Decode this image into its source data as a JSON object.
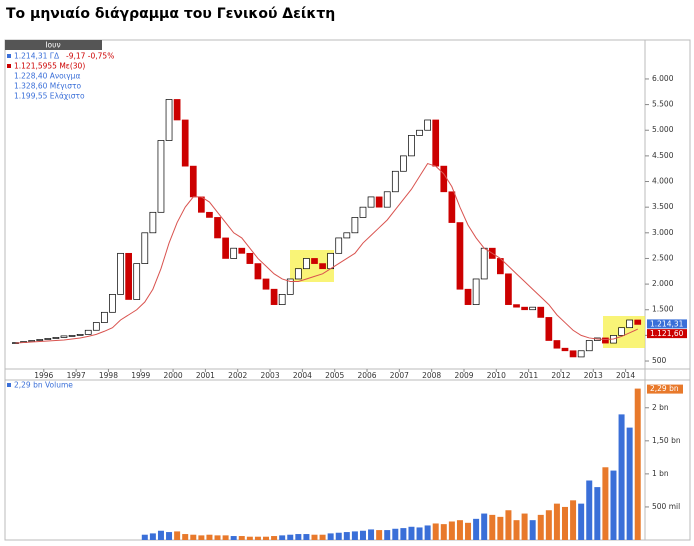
{
  "header": {
    "title": "Το μηνιαίο διάγραμμα του Γενικού Δείκτη"
  },
  "chart_data": [
    {
      "type": "candlestick",
      "legend_header": "Ιουν",
      "info_price": "1.214,31 ΓΔ",
      "info_change": "-9,17 -0,75%",
      "info_ma": "1.121,5955 Με(30)",
      "info_lines": [
        "1.228,40 Ανοιγμα",
        "1.328,60 Μέγιστο",
        "1.199,55 Ελάχιστο"
      ],
      "last_value_labels": [
        "1.214,31",
        "1.121,60"
      ],
      "xlim": [
        1994.8,
        2014.6
      ],
      "xticks": [
        1996,
        1997,
        1998,
        1999,
        2000,
        2001,
        2002,
        2003,
        2004,
        2005,
        2006,
        2007,
        2008,
        2009,
        2010,
        2011,
        2012,
        2013,
        2014
      ],
      "ylim": [
        364,
        6662
      ],
      "yticks": [
        {
          "value": 500,
          "label": "500"
        },
        {
          "value": 1000,
          "label": "1.000"
        },
        {
          "value": 1500,
          "label": "1.500"
        },
        {
          "value": 2000,
          "label": "2.000"
        },
        {
          "value": 2500,
          "label": "2.500"
        },
        {
          "value": 3000,
          "label": "3.000"
        },
        {
          "value": 3500,
          "label": "3.500"
        },
        {
          "value": 4000,
          "label": "4.000"
        },
        {
          "value": 4500,
          "label": "4.500"
        },
        {
          "value": 5000,
          "label": "5.000"
        },
        {
          "value": 5500,
          "label": "5.500"
        },
        {
          "value": 6000,
          "label": "6.000"
        }
      ],
      "x": [
        1995.125,
        1995.375,
        1995.625,
        1995.875,
        1996.125,
        1996.375,
        1996.625,
        1996.875,
        1997.125,
        1997.375,
        1997.625,
        1997.875,
        1998.125,
        1998.375,
        1998.625,
        1998.875,
        1999.125,
        1999.375,
        1999.625,
        1999.875,
        2000.125,
        2000.375,
        2000.625,
        2000.875,
        2001.125,
        2001.375,
        2001.625,
        2001.875,
        2002.125,
        2002.375,
        2002.625,
        2002.875,
        2003.125,
        2003.375,
        2003.625,
        2003.875,
        2004.125,
        2004.375,
        2004.625,
        2004.875,
        2005.125,
        2005.375,
        2005.625,
        2005.875,
        2006.125,
        2006.375,
        2006.625,
        2006.875,
        2007.125,
        2007.375,
        2007.625,
        2007.875,
        2008.125,
        2008.375,
        2008.625,
        2008.875,
        2009.125,
        2009.375,
        2009.625,
        2009.875,
        2010.125,
        2010.375,
        2010.625,
        2010.875,
        2011.125,
        2011.375,
        2011.625,
        2011.875,
        2012.125,
        2012.375,
        2012.625,
        2012.875,
        2013.125,
        2013.375,
        2013.625,
        2013.875,
        2014.125,
        2014.375
      ],
      "price": {
        "up_color": "#ffffff",
        "down_color": "#cc0000",
        "values": [
          860,
          880,
          900,
          920,
          940,
          960,
          990,
          1000,
          1020,
          1100,
          1250,
          1450,
          1800,
          2600,
          1700,
          2400,
          3000,
          3400,
          4800,
          5600,
          5200,
          4300,
          3700,
          3400,
          3300,
          2900,
          2500,
          2700,
          2600,
          2400,
          2100,
          1900,
          1600,
          1800,
          2100,
          2300,
          2500,
          2400,
          2300,
          2600,
          2900,
          3000,
          3300,
          3500,
          3700,
          3500,
          3800,
          4200,
          4500,
          4900,
          5000,
          5200,
          4300,
          3800,
          3200,
          1900,
          1600,
          2100,
          2700,
          2500,
          2200,
          1600,
          1550,
          1500,
          1550,
          1350,
          900,
          750,
          700,
          580,
          700,
          900,
          950,
          850,
          1000,
          1150,
          1300,
          1214
        ]
      },
      "ma": {
        "color": "#d9534f",
        "values": [
          850,
          860,
          870,
          880,
          890,
          900,
          910,
          930,
          950,
          980,
          1020,
          1080,
          1150,
          1300,
          1400,
          1500,
          1650,
          1900,
          2300,
          2800,
          3200,
          3500,
          3700,
          3700,
          3600,
          3400,
          3200,
          3000,
          2900,
          2700,
          2500,
          2350,
          2200,
          2100,
          2050,
          2050,
          2100,
          2150,
          2200,
          2300,
          2400,
          2500,
          2600,
          2800,
          2950,
          3100,
          3250,
          3450,
          3650,
          3850,
          4100,
          4350,
          4300,
          4150,
          3900,
          3500,
          3150,
          2900,
          2700,
          2600,
          2500,
          2350,
          2200,
          2050,
          1900,
          1750,
          1600,
          1400,
          1250,
          1100,
          1000,
          950,
          930,
          920,
          930,
          980,
          1050,
          1122
        ]
      }
    },
    {
      "type": "bar",
      "title": "2,29 bn Volume",
      "last_value_label": "2,29 bn",
      "up_color": "#3a6fd8",
      "down_color": "#e8792b",
      "ylim": [
        0,
        2.42
      ],
      "yticks": [
        {
          "value": 0.5,
          "label": "500 mil"
        },
        {
          "value": 1,
          "label": "1 bn"
        },
        {
          "value": 1.5,
          "label": "1,50 bn"
        },
        {
          "value": 2,
          "label": "2 bn"
        }
      ],
      "values": [
        null,
        null,
        null,
        null,
        null,
        null,
        null,
        null,
        null,
        null,
        null,
        null,
        null,
        null,
        null,
        null,
        0.08,
        0.1,
        0.14,
        0.12,
        0.13,
        0.09,
        0.08,
        0.07,
        0.08,
        0.07,
        0.07,
        0.06,
        0.06,
        0.05,
        0.05,
        0.05,
        0.06,
        0.07,
        0.08,
        0.09,
        0.09,
        0.08,
        0.08,
        0.1,
        0.11,
        0.12,
        0.13,
        0.14,
        0.16,
        0.15,
        0.15,
        0.17,
        0.18,
        0.2,
        0.19,
        0.22,
        0.25,
        0.24,
        0.28,
        0.3,
        0.26,
        0.32,
        0.4,
        0.38,
        0.35,
        0.45,
        0.3,
        0.4,
        0.3,
        0.38,
        0.45,
        0.55,
        0.5,
        0.6,
        0.55,
        0.9,
        0.8,
        1.1,
        1.05,
        1.9,
        1.7,
        2.29
      ]
    }
  ]
}
